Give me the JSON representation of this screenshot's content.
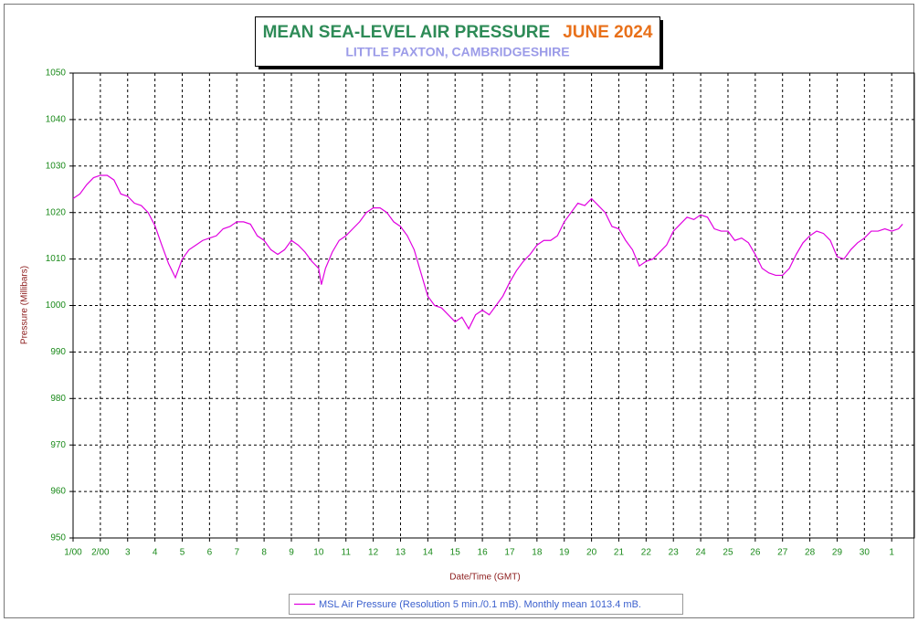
{
  "chart_data": {
    "type": "line",
    "title": "MEAN SEA-LEVEL AIR PRESSURE",
    "title_date": "JUNE 2024",
    "subtitle": "LITTLE PAXTON, CAMBRIDGESHIRE",
    "x_label": "Date/Time (GMT)",
    "y_label": "Pressure (Millibars)",
    "xlim": [
      0,
      30.83
    ],
    "ylim": [
      950,
      1050
    ],
    "yticks": [
      950,
      960,
      970,
      980,
      990,
      1000,
      1010,
      1020,
      1030,
      1040,
      1050
    ],
    "xticks": [
      {
        "value": 0,
        "label": "1/00"
      },
      {
        "value": 1,
        "label": "2/00"
      },
      {
        "value": 2,
        "label": "3"
      },
      {
        "value": 3,
        "label": "4"
      },
      {
        "value": 4,
        "label": "5"
      },
      {
        "value": 5,
        "label": "6"
      },
      {
        "value": 6,
        "label": "7"
      },
      {
        "value": 7,
        "label": "8"
      },
      {
        "value": 8,
        "label": "9"
      },
      {
        "value": 9,
        "label": "10"
      },
      {
        "value": 10,
        "label": "11"
      },
      {
        "value": 11,
        "label": "12"
      },
      {
        "value": 12,
        "label": "13"
      },
      {
        "value": 13,
        "label": "14"
      },
      {
        "value": 14,
        "label": "15"
      },
      {
        "value": 15,
        "label": "16"
      },
      {
        "value": 16,
        "label": "17"
      },
      {
        "value": 17,
        "label": "18"
      },
      {
        "value": 18,
        "label": "19"
      },
      {
        "value": 19,
        "label": "20"
      },
      {
        "value": 20,
        "label": "21"
      },
      {
        "value": 21,
        "label": "22"
      },
      {
        "value": 22,
        "label": "23"
      },
      {
        "value": 23,
        "label": "24"
      },
      {
        "value": 24,
        "label": "25"
      },
      {
        "value": 25,
        "label": "26"
      },
      {
        "value": 26,
        "label": "27"
      },
      {
        "value": 27,
        "label": "28"
      },
      {
        "value": 28,
        "label": "29"
      },
      {
        "value": 29,
        "label": "30"
      },
      {
        "value": 30,
        "label": "1"
      }
    ],
    "grid": true,
    "legend": "bottom",
    "x": [
      0,
      0.25,
      0.5,
      0.75,
      1,
      1.25,
      1.5,
      1.75,
      2,
      2.25,
      2.5,
      2.75,
      3,
      3.25,
      3.5,
      3.75,
      4,
      4.25,
      4.5,
      4.75,
      5,
      5.25,
      5.5,
      5.75,
      6,
      6.25,
      6.5,
      6.75,
      7,
      7.25,
      7.5,
      7.75,
      8,
      8.25,
      8.5,
      8.75,
      9,
      9.1,
      9.25,
      9.5,
      9.75,
      10,
      10.25,
      10.5,
      10.75,
      11,
      11.25,
      11.5,
      11.75,
      12,
      12.25,
      12.5,
      12.75,
      13,
      13.25,
      13.5,
      13.75,
      14,
      14.25,
      14.5,
      14.75,
      15,
      15.25,
      15.5,
      15.75,
      16,
      16.25,
      16.5,
      16.75,
      17,
      17.25,
      17.5,
      17.75,
      18,
      18.25,
      18.5,
      18.75,
      19,
      19.25,
      19.5,
      19.75,
      20,
      20.25,
      20.5,
      20.75,
      21,
      21.25,
      21.5,
      21.75,
      22,
      22.25,
      22.5,
      22.75,
      23,
      23.25,
      23.5,
      23.75,
      24,
      24.25,
      24.5,
      24.75,
      25,
      25.25,
      25.5,
      25.75,
      26,
      26.25,
      26.5,
      26.75,
      27,
      27.25,
      27.5,
      27.75,
      28,
      28.25,
      28.5,
      28.75,
      29,
      29.25,
      29.5,
      29.75,
      30,
      30.25,
      30.4
    ],
    "series": [
      {
        "name": "MSL Air Pressure (Resolution 5 min./0.1 mB). Monthly mean 1013.4 mB.",
        "color": "#e000e0",
        "values": [
          1023,
          1024,
          1026,
          1027.5,
          1028,
          1028,
          1027,
          1024,
          1023.5,
          1022,
          1021.5,
          1020,
          1017.2,
          1013,
          1009,
          1006,
          1010,
          1012,
          1013,
          1014,
          1014.5,
          1015,
          1016.5,
          1017,
          1018,
          1018,
          1017.5,
          1015,
          1014,
          1012,
          1011,
          1012,
          1014,
          1013,
          1011.5,
          1009.5,
          1008,
          1004.5,
          1008,
          1011.5,
          1014,
          1015,
          1016.5,
          1018,
          1020,
          1021,
          1021,
          1020,
          1018,
          1017,
          1015,
          1012,
          1007,
          1002,
          1000,
          999.5,
          998,
          996.5,
          997.5,
          995,
          998,
          999,
          998,
          1000,
          1002,
          1005,
          1007.5,
          1009.5,
          1011,
          1013,
          1014,
          1014,
          1015,
          1018,
          1020,
          1022,
          1021.5,
          1023,
          1021.5,
          1020,
          1017,
          1016.5,
          1014,
          1012,
          1008.5,
          1009.5,
          1010,
          1011.5,
          1013,
          1016,
          1017.5,
          1019,
          1018.5,
          1019.5,
          1019,
          1016.5,
          1016,
          1016,
          1014,
          1014.5,
          1013.5,
          1011,
          1008,
          1007,
          1006.5,
          1006.5,
          1008,
          1011,
          1013.5,
          1015,
          1016,
          1015.5,
          1014,
          1010.5,
          1010,
          1012,
          1013.5,
          1014.5,
          1016,
          1016,
          1016.5,
          1016,
          1016.5,
          1017.5
        ]
      }
    ]
  }
}
